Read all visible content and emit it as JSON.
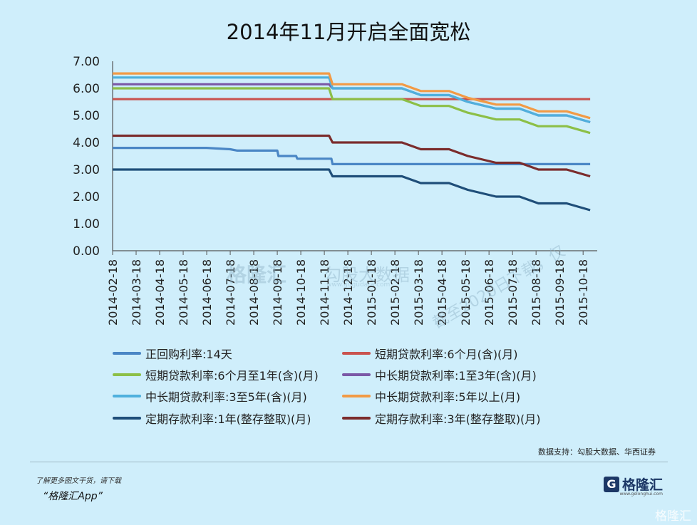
{
  "chart_data": {
    "type": "line",
    "title": "2014年11月开启全面宽松",
    "ylim": [
      0,
      7
    ],
    "y_ticks": [
      "0.00",
      "1.00",
      "2.00",
      "3.00",
      "4.00",
      "5.00",
      "6.00",
      "7.00"
    ],
    "x": [
      "2014-02-18",
      "2014-03-18",
      "2014-04-18",
      "2014-05-18",
      "2014-06-18",
      "2014-07-18",
      "2014-08-18",
      "2014-09-18",
      "2014-10-18",
      "2014-11-18",
      "2014-12-18",
      "2015-01-18",
      "2015-02-18",
      "2015-03-18",
      "2015-04-18",
      "2015-05-18",
      "2015-06-18",
      "2015-07-18",
      "2015-08-18",
      "2015-09-18",
      "2015-10-18"
    ],
    "series": [
      {
        "name": "正回购利率:14天",
        "color": "#4a86c5",
        "points": [
          [
            0,
            3.8
          ],
          [
            4,
            3.8
          ],
          [
            5,
            3.75
          ],
          [
            5.3,
            3.7
          ],
          [
            7,
            3.7
          ],
          [
            7.05,
            3.5
          ],
          [
            7.8,
            3.5
          ],
          [
            7.85,
            3.4
          ],
          [
            9.3,
            3.4
          ],
          [
            9.35,
            3.2
          ],
          [
            20.3,
            3.2
          ]
        ]
      },
      {
        "name": "短期贷款利率:6个月(含)(月)",
        "color": "#c9534f",
        "points": [
          [
            0,
            5.6
          ],
          [
            20.3,
            5.6
          ]
        ]
      },
      {
        "name": "短期贷款利率:6个月至1年(含)(月)",
        "color": "#8cbf47",
        "points": [
          [
            0,
            6.0
          ],
          [
            9.2,
            6.0
          ],
          [
            9.35,
            5.6
          ],
          [
            12.3,
            5.6
          ],
          [
            13.1,
            5.35
          ],
          [
            14.3,
            5.35
          ],
          [
            15.1,
            5.1
          ],
          [
            16.3,
            4.85
          ],
          [
            17.3,
            4.85
          ],
          [
            18.1,
            4.6
          ],
          [
            19.3,
            4.6
          ],
          [
            20.3,
            4.35
          ]
        ]
      },
      {
        "name": "中长期贷款利率:1至3年(含)(月)",
        "color": "#7b58a6",
        "points": [
          [
            0,
            6.15
          ],
          [
            9.2,
            6.15
          ],
          [
            9.35,
            6.0
          ],
          [
            12.3,
            6.0
          ],
          [
            13.1,
            5.75
          ],
          [
            14.3,
            5.75
          ],
          [
            15.1,
            5.5
          ],
          [
            16.3,
            5.25
          ],
          [
            17.3,
            5.25
          ],
          [
            18.1,
            5.0
          ],
          [
            19.3,
            5.0
          ],
          [
            20.3,
            4.75
          ]
        ]
      },
      {
        "name": "中长期贷款利率:3至5年(含)(月)",
        "color": "#4fb0dd",
        "points": [
          [
            0,
            6.4
          ],
          [
            9.2,
            6.4
          ],
          [
            9.35,
            6.0
          ],
          [
            12.3,
            6.0
          ],
          [
            13.1,
            5.75
          ],
          [
            14.3,
            5.75
          ],
          [
            15.1,
            5.5
          ],
          [
            16.3,
            5.25
          ],
          [
            17.3,
            5.25
          ],
          [
            18.1,
            5.0
          ],
          [
            19.3,
            5.0
          ],
          [
            20.3,
            4.75
          ]
        ]
      },
      {
        "name": "中长期贷款利率:5年以上(月)",
        "color": "#f29a45",
        "points": [
          [
            0,
            6.55
          ],
          [
            9.2,
            6.55
          ],
          [
            9.35,
            6.15
          ],
          [
            12.3,
            6.15
          ],
          [
            13.1,
            5.9
          ],
          [
            14.3,
            5.9
          ],
          [
            15.1,
            5.65
          ],
          [
            16.3,
            5.4
          ],
          [
            17.3,
            5.4
          ],
          [
            18.1,
            5.15
          ],
          [
            19.3,
            5.15
          ],
          [
            20.3,
            4.9
          ]
        ]
      },
      {
        "name": "定期存款利率:1年(整存整取)(月)",
        "color": "#1f4e79",
        "points": [
          [
            0,
            3.0
          ],
          [
            9.2,
            3.0
          ],
          [
            9.35,
            2.75
          ],
          [
            12.3,
            2.75
          ],
          [
            13.1,
            2.5
          ],
          [
            14.3,
            2.5
          ],
          [
            15.1,
            2.25
          ],
          [
            16.3,
            2.0
          ],
          [
            17.3,
            2.0
          ],
          [
            18.1,
            1.75
          ],
          [
            19.3,
            1.75
          ],
          [
            20.3,
            1.5
          ]
        ]
      },
      {
        "name": "定期存款利率:3年(整存整取)(月)",
        "color": "#7b2c2c",
        "points": [
          [
            0,
            4.25
          ],
          [
            9.2,
            4.25
          ],
          [
            9.35,
            4.0
          ],
          [
            12.3,
            4.0
          ],
          [
            13.1,
            3.75
          ],
          [
            14.3,
            3.75
          ],
          [
            15.1,
            3.5
          ],
          [
            16.3,
            3.25
          ],
          [
            17.3,
            3.25
          ],
          [
            18.1,
            3.0
          ],
          [
            19.3,
            3.0
          ],
          [
            20.3,
            2.75
          ]
        ]
      }
    ]
  },
  "source": "数据支持：勾股大数据、华西证券",
  "footer": {
    "line1": "了解更多图文干货，请下载",
    "line2": "“格隆汇App”"
  },
  "logo": {
    "mark": "G",
    "text": "格隆汇",
    "sub": "www.gelonghui.com"
  },
  "watermarks": {
    "center_logo": "格隆汇",
    "center_brand": "勾股大数据",
    "center_url": "www.gugudata.com",
    "diagonal": "截至2020日下载，仅"
  },
  "corner_watermark": "格隆汇"
}
